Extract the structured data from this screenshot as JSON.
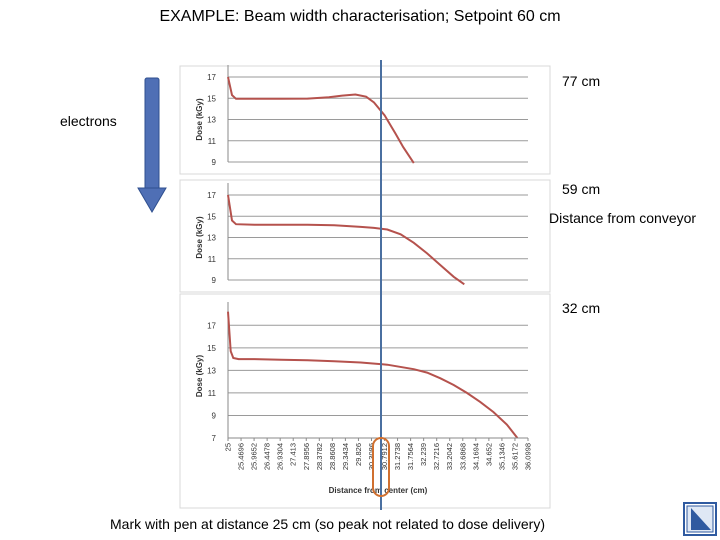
{
  "title": "EXAMPLE: Beam width characterisation; Setpoint 60 cm",
  "labels": {
    "electrons": "electrons",
    "d77": "77 cm",
    "d59": "59 cm",
    "distance_conveyor": "Distance from conveyor",
    "d32": "32 cm"
  },
  "footer": "Mark with pen at distance 25 cm (so peak not related to dose delivery)",
  "colors": {
    "curve": "#b5524d",
    "arrow": "#4f6fb5",
    "arrow_edge": "#2f4f8f",
    "marker_line": "#4a6fa0",
    "marker_circle": "#d07030",
    "nav": "#2f5aa0"
  },
  "icons": {
    "arrow": "down-arrow-icon",
    "nav": "next-slide-icon"
  },
  "chart_data": [
    {
      "type": "line",
      "name": "77 cm",
      "ylabel": "Dose (kGy)",
      "yticks": [
        17,
        15,
        13,
        11,
        9
      ],
      "ylim": [
        9,
        17
      ],
      "xlim": [
        25,
        36.3
      ],
      "grid": true,
      "x": [
        25,
        25.15,
        25.3,
        26,
        27,
        28,
        28.8,
        29.3,
        29.8,
        30.2,
        30.5,
        30.9,
        31.3,
        31.6,
        32.0
      ],
      "y": [
        17,
        15.3,
        14.95,
        14.95,
        14.95,
        14.97,
        15.1,
        15.25,
        15.35,
        15.15,
        14.6,
        13.4,
        11.7,
        10.4,
        8.9
      ]
    },
    {
      "type": "line",
      "name": "59 cm",
      "ylabel": "Dose (kGy)",
      "yticks": [
        17,
        15,
        13,
        11,
        9
      ],
      "ylim": [
        9,
        17
      ],
      "xlim": [
        25,
        36.3
      ],
      "grid": true,
      "x": [
        25,
        25.15,
        25.3,
        26,
        27,
        28,
        29,
        30,
        30.5,
        31,
        31.5,
        32,
        32.5,
        33,
        33.5,
        33.9
      ],
      "y": [
        17,
        14.6,
        14.25,
        14.2,
        14.2,
        14.2,
        14.15,
        14.0,
        13.9,
        13.75,
        13.3,
        12.5,
        11.5,
        10.4,
        9.3,
        8.6
      ]
    },
    {
      "type": "line",
      "name": "32 cm",
      "ylabel": "Dose (kGy)",
      "yticks": [
        17,
        15,
        13,
        11,
        9,
        7
      ],
      "ylim": [
        7,
        18
      ],
      "xlim": [
        25,
        36.3
      ],
      "grid": true,
      "xlabel": "Distance from center (cm)",
      "xticks": [
        "25",
        "25.4696",
        "25.9652",
        "26.4478",
        "26.9304",
        "27.413",
        "27.8956",
        "28.3782",
        "28.8608",
        "29.3434",
        "29.826",
        "30.3086",
        "30.7912",
        "31.2738",
        "31.7564",
        "32.239",
        "32.7216",
        "33.2042",
        "33.6868",
        "34.1694",
        "34.652",
        "35.1346",
        "35.6172",
        "36.0998"
      ],
      "x": [
        25,
        25.1,
        25.2,
        25.4,
        26,
        27,
        28,
        29,
        30,
        31,
        32,
        32.5,
        33,
        33.5,
        34,
        34.5,
        35,
        35.5,
        35.9
      ],
      "y": [
        18.2,
        14.7,
        14.1,
        14.0,
        14.0,
        13.95,
        13.9,
        13.8,
        13.7,
        13.5,
        13.1,
        12.8,
        12.3,
        11.7,
        11.0,
        10.2,
        9.3,
        8.2,
        7.0
      ]
    }
  ]
}
